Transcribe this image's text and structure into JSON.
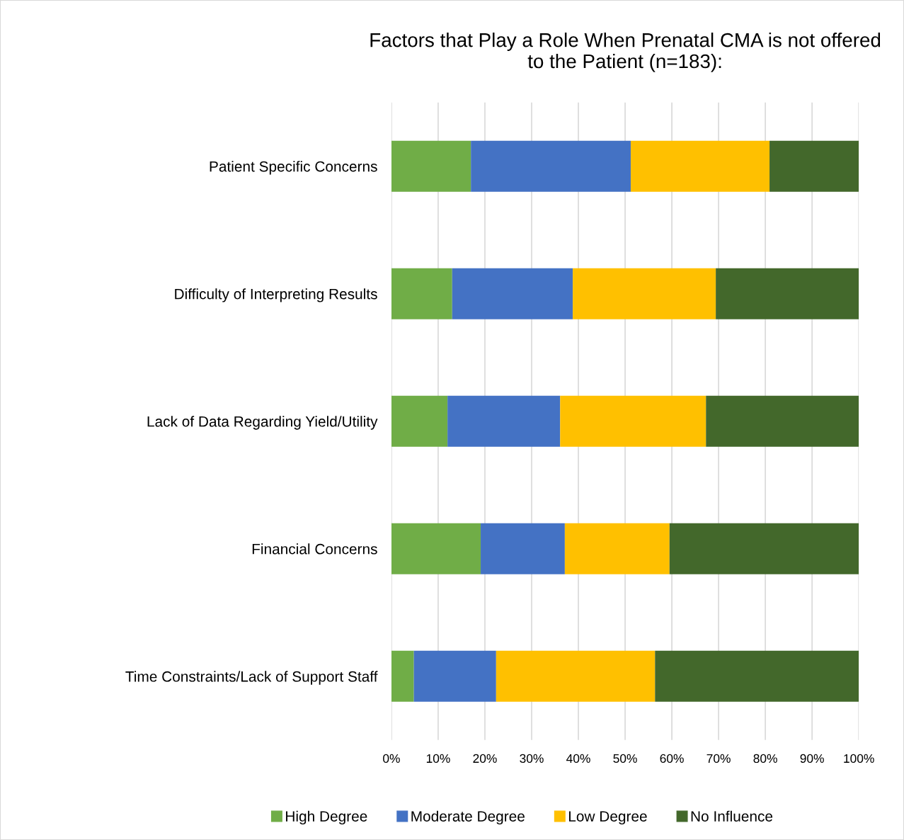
{
  "chart_data": {
    "type": "bar",
    "orientation": "horizontal",
    "stacked": true,
    "title": "Factors that Play a Role When Prenatal CMA is not offered\nto the Patient (n=183):",
    "categories": [
      "Patient Specific Concerns",
      "Difficulty of Interpreting Results",
      "Lack of Data Regarding Yield/Utility",
      "Financial Concerns",
      "Time Constraints/Lack of Support Staff"
    ],
    "series": [
      {
        "name": "High Degree",
        "color": "#70ad47",
        "values": [
          17.0,
          13.0,
          12.0,
          19.1,
          4.8
        ]
      },
      {
        "name": "Moderate Degree",
        "color": "#4472c4",
        "values": [
          34.2,
          25.8,
          24.1,
          18.0,
          17.6
        ]
      },
      {
        "name": "Low Degree",
        "color": "#ffc000",
        "values": [
          29.7,
          30.6,
          31.2,
          22.4,
          34.0
        ]
      },
      {
        "name": "No Influence",
        "color": "#43682b",
        "values": [
          19.1,
          30.6,
          32.7,
          40.5,
          43.6
        ]
      }
    ],
    "xlim": [
      0,
      100
    ],
    "xticks": [
      {
        "value": 0,
        "label": "0%"
      },
      {
        "value": 10,
        "label": "10%"
      },
      {
        "value": 20,
        "label": "20%"
      },
      {
        "value": 30,
        "label": "30%"
      },
      {
        "value": 40,
        "label": "40%"
      },
      {
        "value": 50,
        "label": "50%"
      },
      {
        "value": 60,
        "label": "60%"
      },
      {
        "value": 70,
        "label": "70%"
      },
      {
        "value": 80,
        "label": "80%"
      },
      {
        "value": 90,
        "label": "90%"
      },
      {
        "value": 100,
        "label": "100%"
      }
    ],
    "grid": "x",
    "legend": "bottom"
  }
}
